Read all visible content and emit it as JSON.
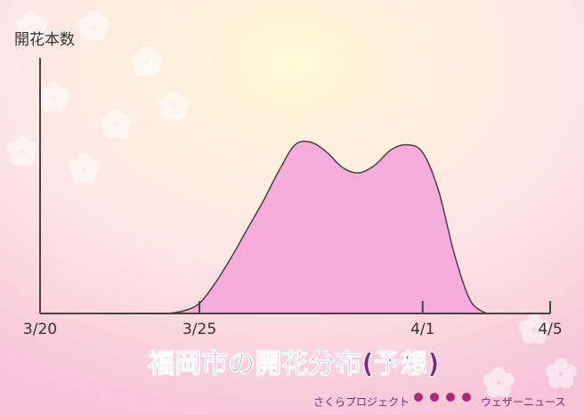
{
  "chart_data": {
    "type": "area",
    "y_axis_label": "開花本数",
    "title": "福岡市の開花分布(予想)",
    "credit_left": "さくらプロジェクト",
    "credit_right": "ウェザーニュース",
    "x": [
      4,
      4.5,
      5,
      5.5,
      6,
      6.5,
      7,
      7.5,
      8,
      8.5,
      9,
      9.5,
      10,
      10.5,
      11,
      11.5,
      12,
      12.5,
      13,
      13.5,
      14
    ],
    "values": [
      0,
      1,
      4,
      12,
      22,
      33,
      44,
      56,
      66,
      67,
      63,
      57,
      55,
      58,
      64,
      66,
      63,
      48,
      23,
      5,
      0
    ],
    "color": "#f7addb",
    "xlim": [
      0,
      16
    ],
    "xticks": [
      {
        "value": 0,
        "label": "3/20"
      },
      {
        "value": 5,
        "label": "3/25"
      },
      {
        "value": 12,
        "label": "4/1"
      },
      {
        "value": 16,
        "label": "4/5"
      }
    ],
    "ylim": [
      0,
      100
    ]
  }
}
